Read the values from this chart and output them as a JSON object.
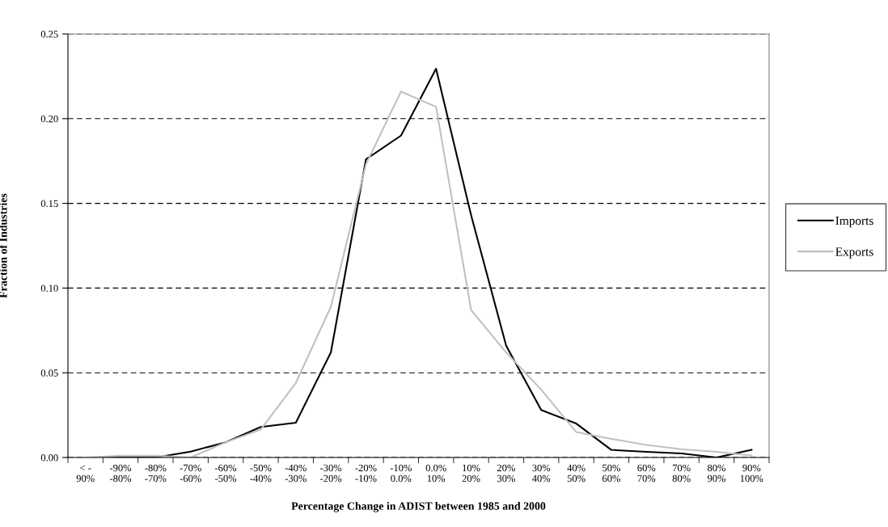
{
  "chart_data": {
    "type": "line",
    "xlabel": "Percentage Change in ADIST between 1985 and 2000",
    "ylabel": "Fraction of Industries",
    "categories": [
      "< -\n90%",
      "-90%\n-80%",
      "-80%\n-70%",
      "-70%\n-60%",
      "-60%\n-50%",
      "-50%\n-40%",
      "-40%\n-30%",
      "-30%\n-20%",
      "-20%\n-10%",
      "-10%\n0.0%",
      "0.0%\n10%",
      "10%\n20%",
      "20%\n30%",
      "30%\n40%",
      "40%\n50%",
      "50%\n60%",
      "60%\n70%",
      "70%\n80%",
      "80%\n90%",
      "90%\n100%"
    ],
    "series": [
      {
        "name": "Imports",
        "color": "#000000",
        "values": [
          0,
          0,
          0,
          0.0035,
          0.009,
          0.018,
          0.0205,
          0.062,
          0.176,
          0.19,
          0.2295,
          0.143,
          0.066,
          0.028,
          0.02,
          0.0045,
          0.0033,
          0.0024,
          0,
          0.0045
        ]
      },
      {
        "name": "Exports",
        "color": "#c0c0c0",
        "values": [
          0,
          0.001,
          0.001,
          0,
          0.009,
          0.0165,
          0.044,
          0.089,
          0.173,
          0.216,
          0.207,
          0.087,
          0.062,
          0.04,
          0.015,
          0.011,
          0.0074,
          0.0049,
          0.0033,
          0.0011
        ]
      }
    ],
    "ylim": [
      0,
      0.25
    ],
    "yticks": [
      {
        "value": 0,
        "label": "0.00"
      },
      {
        "value": 0.05,
        "label": "0.05"
      },
      {
        "value": 0.1,
        "label": "0.10"
      },
      {
        "value": 0.15,
        "label": "0.15"
      },
      {
        "value": 0.2,
        "label": "0.20"
      },
      {
        "value": 0.25,
        "label": "0.25"
      }
    ],
    "grid": "y",
    "legend": "right",
    "marker": "none",
    "line_style": "solid"
  }
}
